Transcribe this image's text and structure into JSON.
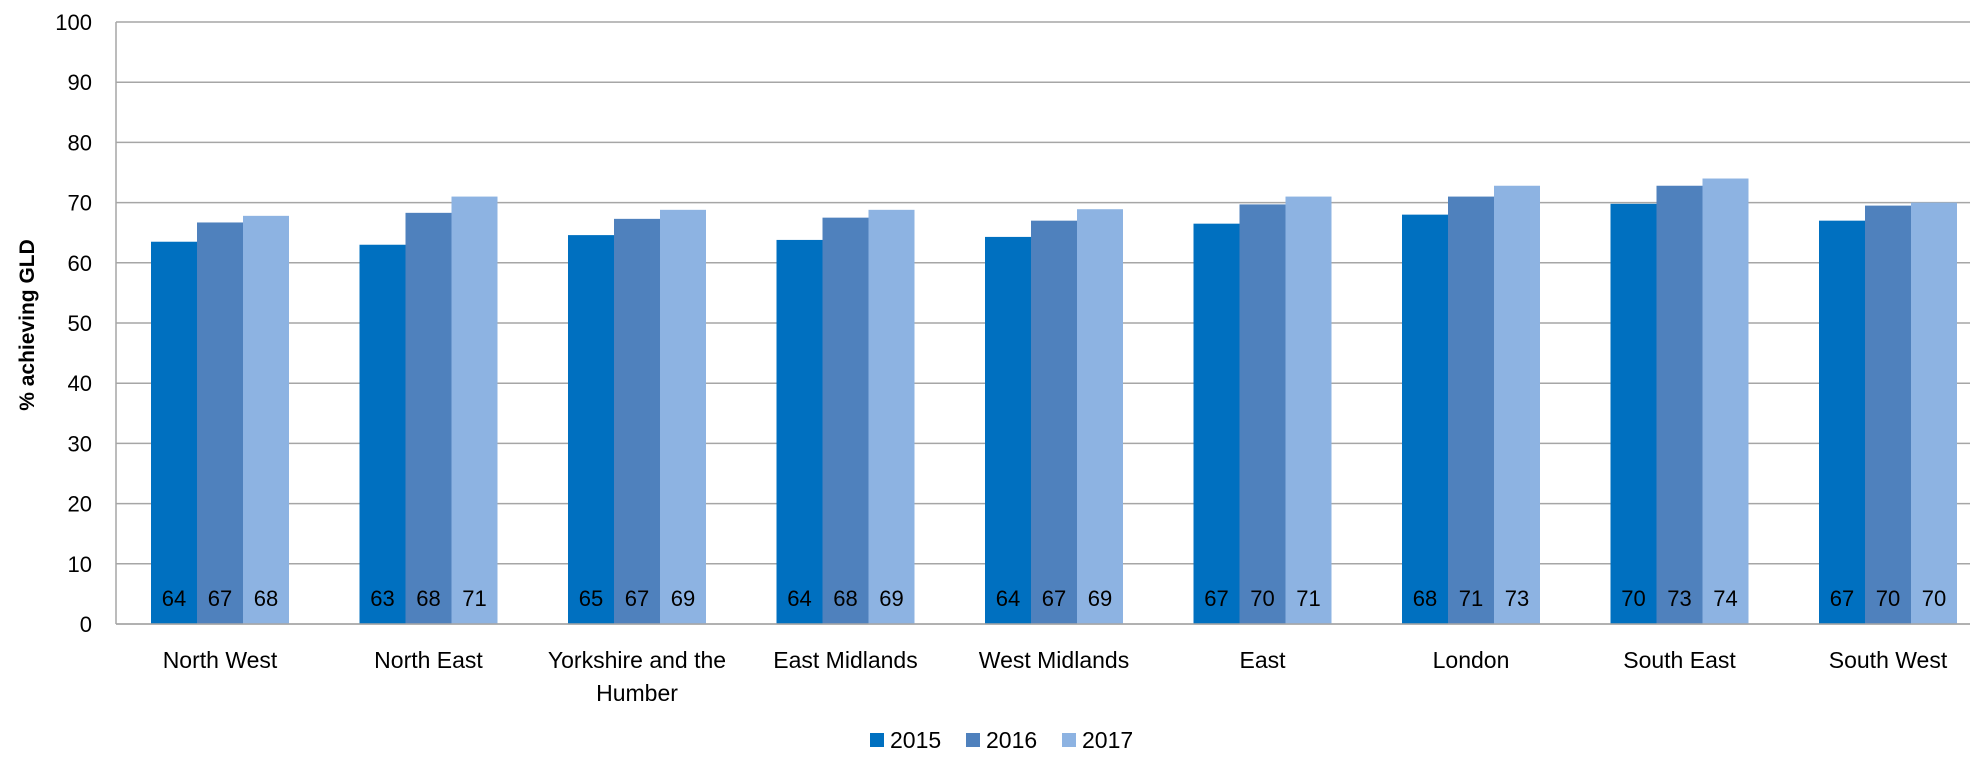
{
  "chart_data": {
    "type": "bar",
    "title": "",
    "xlabel": "",
    "ylabel": "% achieving GLD",
    "ylim": [
      0,
      100
    ],
    "yticks": [
      0,
      10,
      20,
      30,
      40,
      50,
      60,
      70,
      80,
      90,
      100
    ],
    "grid": true,
    "legend_position": "bottom",
    "categories": [
      [
        "North West"
      ],
      [
        "North East"
      ],
      [
        "Yorkshire and the",
        "Humber"
      ],
      [
        "East Midlands"
      ],
      [
        "West Midlands"
      ],
      [
        "East"
      ],
      [
        "London"
      ],
      [
        "South East"
      ],
      [
        "South West"
      ]
    ],
    "series": [
      {
        "name": "2015",
        "color": "#0070C0",
        "values": [
          63.5,
          63,
          64.6,
          63.8,
          64.3,
          66.5,
          68,
          69.8,
          67
        ]
      },
      {
        "name": "2016",
        "color": "#4F81BD",
        "values": [
          66.7,
          68.3,
          67.3,
          67.5,
          67,
          69.7,
          71,
          72.8,
          69.5
        ]
      },
      {
        "name": "2017",
        "color": "#8DB3E2",
        "values": [
          67.8,
          71,
          68.8,
          68.8,
          68.9,
          71,
          72.8,
          74,
          70
        ]
      }
    ],
    "data_labels": [
      [
        "64",
        "63",
        "65",
        "64",
        "64",
        "67",
        "68",
        "70",
        "67"
      ],
      [
        "67",
        "68",
        "67",
        "68",
        "67",
        "70",
        "71",
        "73",
        "70"
      ],
      [
        "68",
        "71",
        "69",
        "69",
        "69",
        "71",
        "73",
        "74",
        "70"
      ]
    ]
  }
}
